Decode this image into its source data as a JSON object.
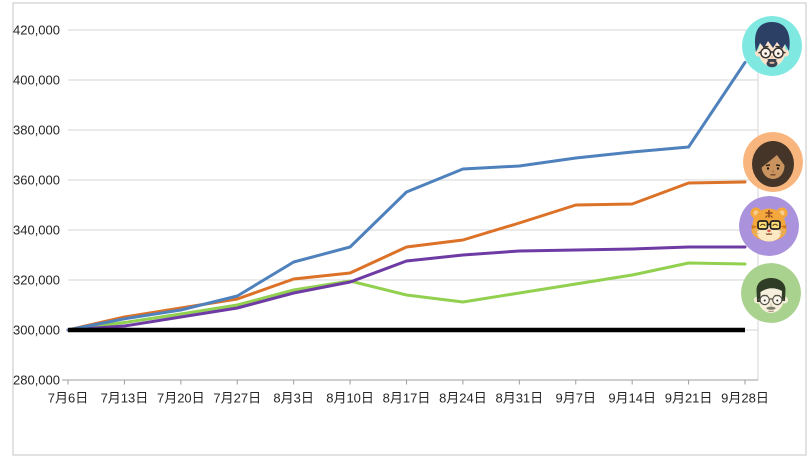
{
  "chart_data": {
    "type": "line",
    "title": "",
    "xlabel": "",
    "ylabel": "",
    "categories": [
      "7月6日",
      "7月13日",
      "7月20日",
      "7月27日",
      "8月3日",
      "8月10日",
      "8月17日",
      "8月24日",
      "8月31日",
      "9月7日",
      "9月14日",
      "9月21日",
      "9月28日"
    ],
    "series": [
      {
        "name": "member-1-blue",
        "color": "#4F81BD",
        "values": [
          300000,
          304500,
          308000,
          313600,
          327200,
          333200,
          355200,
          364400,
          365600,
          368800,
          371200,
          373200,
          407000
        ],
        "avatar_icon": "man-glasses-goatee-avatar-icon",
        "avatar_bg": "#7FE8E0"
      },
      {
        "name": "member-2-orange",
        "color": "#DC7228",
        "values": [
          300000,
          305200,
          308800,
          312400,
          320400,
          322800,
          333200,
          336000,
          342800,
          350000,
          350400,
          358800,
          359200
        ],
        "avatar_icon": "long-hair-person-avatar-icon",
        "avatar_bg": "#F8B57E"
      },
      {
        "name": "member-3-purple",
        "color": "#6E3BA4",
        "values": [
          300000,
          301600,
          305200,
          308800,
          314800,
          319200,
          327600,
          330000,
          331600,
          332000,
          332400,
          333200,
          333200
        ],
        "avatar_icon": "tiger-glasses-avatar-icon",
        "avatar_bg": "#AA93DC"
      },
      {
        "name": "member-4-green",
        "color": "#92D050",
        "values": [
          300000,
          303000,
          306400,
          310000,
          316000,
          319600,
          314000,
          311200,
          314800,
          318400,
          322000,
          326800,
          326400
        ],
        "avatar_icon": "man-glasses-mustache-avatar-icon",
        "avatar_bg": "#A9D28F"
      },
      {
        "name": "baseline-300000",
        "color": "#000000",
        "values": [
          300000,
          300000,
          300000,
          300000,
          300000,
          300000,
          300000,
          300000,
          300000,
          300000,
          300000,
          300000,
          300000
        ],
        "avatar_icon": null,
        "avatar_bg": null
      }
    ],
    "ylim": [
      280000,
      420000
    ],
    "ytick_step": 20000,
    "ytick_labels": [
      "280,000",
      "300,000",
      "320,000",
      "340,000",
      "360,000",
      "380,000",
      "400,000",
      "420,000"
    ],
    "grid": true,
    "legend_position": "right-avatars",
    "colors": {
      "gridline": "#D6D6D6",
      "axis_line": "#9D9D9D",
      "tick_label": "#262626",
      "frame_border": "#C6C6C6",
      "background": "#FFFFFF"
    }
  }
}
